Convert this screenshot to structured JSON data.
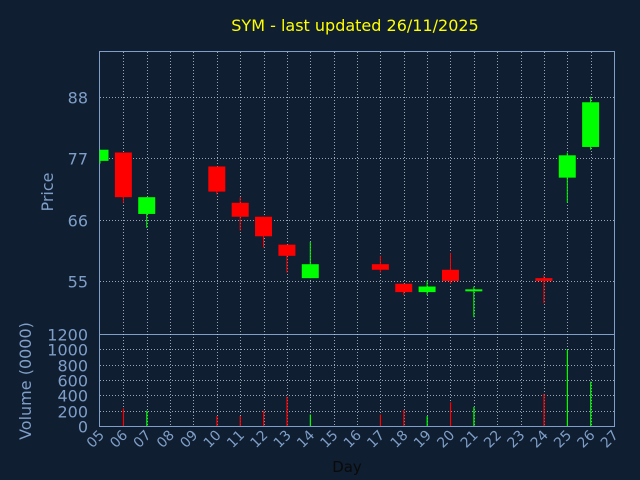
{
  "chart_data": {
    "type": "candlestick",
    "title": "SYM - last updated 26/11/2025",
    "xlabel": "Day",
    "ylabel": "Price",
    "volume_label": "Volume (0000)",
    "x_ticks": [
      "05",
      "06",
      "07",
      "08",
      "09",
      "10",
      "11",
      "12",
      "13",
      "14",
      "15",
      "16",
      "17",
      "18",
      "19",
      "20",
      "21",
      "22",
      "23",
      "24",
      "25",
      "26",
      "27"
    ],
    "price_ticks": [
      55,
      66,
      77,
      88
    ],
    "volume_ticks": [
      0,
      200,
      400,
      600,
      800,
      1000,
      1200
    ],
    "price_range": [
      45.5,
      96.0
    ],
    "volume_range": [
      0,
      1200
    ],
    "grid": true,
    "candles": [
      {
        "day": 5,
        "open": 76.5,
        "high": 78.5,
        "low": 76.0,
        "close": 78.5
      },
      {
        "day": 6,
        "open": 78.0,
        "high": 78.0,
        "low": 69.0,
        "close": 70.0
      },
      {
        "day": 7,
        "open": 67.0,
        "high": 70.0,
        "low": 64.5,
        "close": 70.0
      },
      {
        "day": 10,
        "open": 75.5,
        "high": 75.5,
        "low": 70.5,
        "close": 71.0
      },
      {
        "day": 11,
        "open": 69.0,
        "high": 70.0,
        "low": 64.0,
        "close": 66.5
      },
      {
        "day": 12,
        "open": 66.5,
        "high": 66.5,
        "low": 61.0,
        "close": 63.0
      },
      {
        "day": 13,
        "open": 61.5,
        "high": 61.5,
        "low": 56.5,
        "close": 59.5
      },
      {
        "day": 14,
        "open": 55.5,
        "high": 62.0,
        "low": 55.5,
        "close": 58.0
      },
      {
        "day": 17,
        "open": 58.0,
        "high": 59.5,
        "low": 56.5,
        "close": 57.0
      },
      {
        "day": 18,
        "open": 54.5,
        "high": 54.5,
        "low": 52.5,
        "close": 53.0
      },
      {
        "day": 19,
        "open": 53.0,
        "high": 55.0,
        "low": 52.5,
        "close": 54.0
      },
      {
        "day": 20,
        "open": 57.0,
        "high": 60.0,
        "low": 54.5,
        "close": 55.0
      },
      {
        "day": 21,
        "open": 53.5,
        "high": 54.0,
        "low": 48.5,
        "close": 53.5
      },
      {
        "day": 24,
        "open": 55.5,
        "high": 56.0,
        "low": 51.0,
        "close": 55.0
      },
      {
        "day": 25,
        "open": 73.5,
        "high": 78.0,
        "low": 69.0,
        "close": 77.5
      },
      {
        "day": 26,
        "open": 79.0,
        "high": 88.0,
        "low": 78.5,
        "close": 87.0
      }
    ],
    "volume": [
      {
        "day": 5,
        "value": 0
      },
      {
        "day": 6,
        "value": 230
      },
      {
        "day": 7,
        "value": 200
      },
      {
        "day": 10,
        "value": 130
      },
      {
        "day": 11,
        "value": 130
      },
      {
        "day": 12,
        "value": 200
      },
      {
        "day": 13,
        "value": 380
      },
      {
        "day": 14,
        "value": 150
      },
      {
        "day": 17,
        "value": 150
      },
      {
        "day": 18,
        "value": 210
      },
      {
        "day": 19,
        "value": 130
      },
      {
        "day": 20,
        "value": 310
      },
      {
        "day": 21,
        "value": 250
      },
      {
        "day": 24,
        "value": 420
      },
      {
        "day": 25,
        "value": 1000
      },
      {
        "day": 26,
        "value": 580
      }
    ],
    "colors": {
      "background": "#0f1e30",
      "text": "#7f9ec8",
      "title": "#ffff00",
      "grid": "#c8d2e0",
      "up": "#00ff00",
      "down": "#ff0000"
    }
  }
}
